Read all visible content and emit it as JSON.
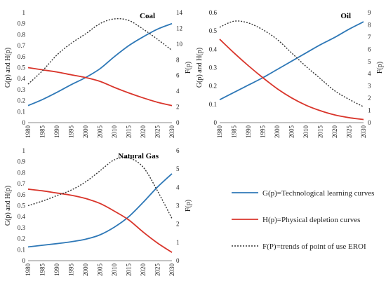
{
  "chart_data": [
    {
      "type": "line",
      "title": "Coal",
      "ylabel": "G(p) and H(p)",
      "y2label": "F(p)",
      "ylim": [
        0,
        1
      ],
      "y_ticks": [
        0,
        0.1,
        0.2,
        0.3,
        0.4,
        0.5,
        0.6,
        0.7,
        0.8,
        0.9,
        1
      ],
      "y_tick_labels": [
        "0",
        "0.1",
        "0.2",
        "0.3",
        "0.4",
        "0.5",
        "0.6",
        "0.7",
        "0.8",
        "0.9",
        "1"
      ],
      "y2lim": [
        0,
        14
      ],
      "y2_ticks": [
        0,
        2,
        4,
        6,
        8,
        10,
        12,
        14
      ],
      "y2_tick_labels": [
        "0",
        "2",
        "4",
        "6",
        "8",
        "10",
        "12",
        "14"
      ],
      "x_ticks": [
        "1980",
        "1985",
        "1990",
        "1995",
        "2000",
        "2005",
        "2010",
        "2015",
        "2020",
        "2025",
        "2030"
      ],
      "x": [
        1980,
        1985,
        1990,
        1995,
        2000,
        2005,
        2010,
        2015,
        2020,
        2025,
        2030
      ],
      "series": [
        {
          "name": "G(p)=Technological learning curves",
          "axis": "left",
          "color": "#2e78b7",
          "dash": "solid",
          "values": [
            0.155,
            0.21,
            0.275,
            0.345,
            0.41,
            0.49,
            0.6,
            0.7,
            0.78,
            0.85,
            0.9
          ]
        },
        {
          "name": "H(p)=Physical depletion curves",
          "axis": "left",
          "color": "#d9352b",
          "dash": "solid",
          "values": [
            0.5,
            0.48,
            0.46,
            0.435,
            0.41,
            0.375,
            0.32,
            0.27,
            0.225,
            0.185,
            0.155
          ]
        },
        {
          "name": "F(P)=trends of point of use EROI",
          "axis": "right",
          "color": "#333333",
          "dash": "dotted",
          "values": [
            4.9,
            6.6,
            8.6,
            10.1,
            11.3,
            12.6,
            13.2,
            13.0,
            11.9,
            10.6,
            9.2
          ]
        }
      ]
    },
    {
      "type": "line",
      "title": "Oil",
      "ylabel": "G(p) and H(p)",
      "y2label": "F(p)",
      "ylim": [
        0,
        0.6
      ],
      "y_ticks": [
        0,
        0.1,
        0.2,
        0.3,
        0.4,
        0.5,
        0.6
      ],
      "y_tick_labels": [
        "0",
        "0.1",
        "0.2",
        "0.3",
        "0.4",
        "0.5",
        "0.6"
      ],
      "y2lim": [
        0,
        9
      ],
      "y2_ticks": [
        0,
        1,
        2,
        3,
        4,
        5,
        6,
        7,
        8,
        9
      ],
      "y2_tick_labels": [
        "0",
        "1",
        "2",
        "3",
        "4",
        "5",
        "6",
        "7",
        "8",
        "9"
      ],
      "x_ticks": [
        "1980",
        "1985",
        "1990",
        "1995",
        "2000",
        "2005",
        "2010",
        "2015",
        "2020",
        "2025",
        "2030"
      ],
      "x": [
        1980,
        1985,
        1990,
        1995,
        2000,
        2005,
        2010,
        2015,
        2020,
        2025,
        2030
      ],
      "series": [
        {
          "name": "G(p)=Technological learning curves",
          "axis": "left",
          "color": "#2e78b7",
          "dash": "solid",
          "values": [
            0.125,
            0.165,
            0.205,
            0.245,
            0.29,
            0.335,
            0.38,
            0.425,
            0.465,
            0.51,
            0.55
          ]
        },
        {
          "name": "H(p)=Physical depletion curves",
          "axis": "left",
          "color": "#d9352b",
          "dash": "solid",
          "values": [
            0.455,
            0.38,
            0.31,
            0.245,
            0.185,
            0.135,
            0.095,
            0.065,
            0.042,
            0.027,
            0.017
          ]
        },
        {
          "name": "F(P)=trends of point of use EROI",
          "axis": "right",
          "color": "#333333",
          "dash": "dotted",
          "values": [
            7.8,
            8.3,
            8.15,
            7.6,
            6.8,
            5.7,
            4.6,
            3.6,
            2.6,
            1.9,
            1.3
          ]
        }
      ]
    },
    {
      "type": "line",
      "title": "Natural Gas",
      "ylabel": "G(p) and H(p)",
      "y2label": "F(p)",
      "ylim": [
        0,
        1
      ],
      "y_ticks": [
        0,
        0.1,
        0.2,
        0.3,
        0.4,
        0.5,
        0.6,
        0.7,
        0.8,
        0.9,
        1
      ],
      "y_tick_labels": [
        "0",
        "0.1",
        "0.2",
        "0.3",
        "0.4",
        "0.5",
        "0.6",
        "0.7",
        "0.8",
        "0.9",
        "1"
      ],
      "y2lim": [
        0,
        6
      ],
      "y2_ticks": [
        0,
        1,
        2,
        3,
        4,
        5,
        6
      ],
      "y2_tick_labels": [
        "0",
        "1",
        "2",
        "3",
        "4",
        "5",
        "6"
      ],
      "x_ticks": [
        "1980",
        "1985",
        "1990",
        "1995",
        "2000",
        "2005",
        "2010",
        "2015",
        "2020",
        "2025",
        "2030"
      ],
      "x": [
        1980,
        1985,
        1990,
        1995,
        2000,
        2005,
        2010,
        2015,
        2020,
        2025,
        2030
      ],
      "series": [
        {
          "name": "G(p)=Technological learning curves",
          "axis": "left",
          "color": "#2e78b7",
          "dash": "solid",
          "values": [
            0.125,
            0.14,
            0.155,
            0.172,
            0.195,
            0.235,
            0.305,
            0.4,
            0.53,
            0.67,
            0.79
          ]
        },
        {
          "name": "H(p)=Physical depletion curves",
          "axis": "left",
          "color": "#d9352b",
          "dash": "solid",
          "values": [
            0.65,
            0.635,
            0.615,
            0.595,
            0.565,
            0.52,
            0.45,
            0.37,
            0.26,
            0.16,
            0.075
          ]
        },
        {
          "name": "F(P)=trends of point of use EROI",
          "axis": "right",
          "color": "#333333",
          "dash": "dotted",
          "values": [
            3.0,
            3.25,
            3.55,
            3.85,
            4.3,
            4.9,
            5.5,
            5.6,
            5.1,
            3.8,
            2.3
          ]
        }
      ]
    }
  ],
  "legend": {
    "items": [
      {
        "label": "G(p)=Technological learning curves",
        "color": "#2e78b7",
        "dash": "solid"
      },
      {
        "label": "H(p)=Physical depletion curves",
        "color": "#d9352b",
        "dash": "solid"
      },
      {
        "label": "F(P)=trends of point of use EROI",
        "color": "#333333",
        "dash": "dotted"
      }
    ]
  }
}
